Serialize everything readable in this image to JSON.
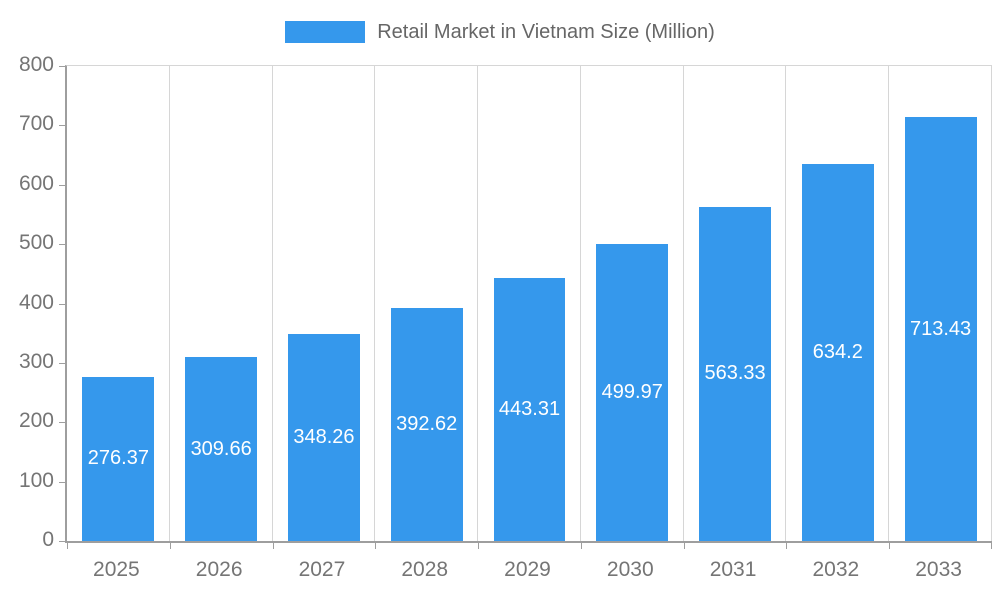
{
  "chart_data": {
    "type": "bar",
    "title": "Retail Market in Vietnam Size (Million)",
    "categories": [
      "2025",
      "2026",
      "2027",
      "2028",
      "2029",
      "2030",
      "2031",
      "2032",
      "2033"
    ],
    "values": [
      276.37,
      309.66,
      348.26,
      392.62,
      443.31,
      499.97,
      563.33,
      634.2,
      713.43
    ],
    "value_labels": [
      "276.37",
      "309.66",
      "348.26",
      "392.62",
      "443.31",
      "499.97",
      "563.33",
      "634.2",
      "713.43"
    ],
    "ylim": [
      0,
      800
    ],
    "y_ticks": [
      0,
      100,
      200,
      300,
      400,
      500,
      600,
      700,
      800
    ],
    "xlabel": "",
    "ylabel": "",
    "legend_position": "top",
    "grid": "vertical",
    "value_label_position": "center-inside",
    "colors": {
      "bar": "#3598EC",
      "label_text": "#FFFFFF",
      "axis_text": "#757575",
      "gridline": "#D6D6D6",
      "axis_line": "#9E9E9E",
      "title_text": "#666666",
      "background": "#FFFFFF"
    }
  }
}
